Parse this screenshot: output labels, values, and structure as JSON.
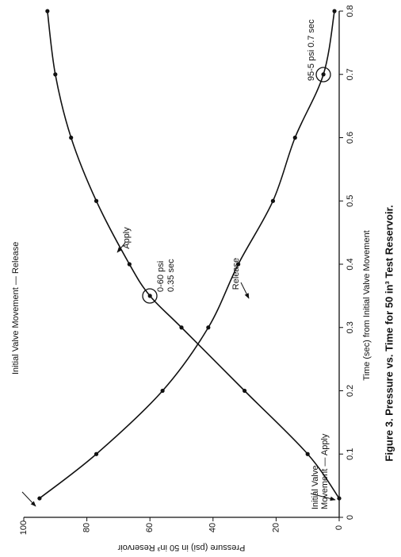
{
  "chart_data": {
    "type": "line",
    "caption": "Figure 3.  Pressure vs. Time for 50 in³ Test Reservoir.",
    "x_label": "Time (sec) from Initial Valve Movement",
    "y_label": "Pressure (psi) in 50 in³ Reservoir",
    "x": [
      0.03,
      0.1,
      0.2,
      0.3,
      0.35,
      0.4,
      0.5,
      0.6,
      0.7,
      0.8
    ],
    "series": [
      {
        "name": "Apply",
        "color": "#111111",
        "values": [
          0,
          10,
          30,
          50,
          60,
          66.5,
          77,
          85,
          90,
          92.5
        ]
      },
      {
        "name": "Release",
        "color": "#111111",
        "values": [
          95,
          77,
          56,
          41.5,
          null,
          32,
          21,
          14,
          5,
          1.5
        ]
      }
    ],
    "xlim": [
      0,
      0.8
    ],
    "xticks": [
      0,
      0.1,
      0.2,
      0.3,
      0.4,
      0.5,
      0.6,
      0.7,
      0.8
    ],
    "ylim": [
      0,
      100
    ],
    "yticks": [
      0,
      20,
      40,
      60,
      80,
      100
    ],
    "annotations": [
      "0-60 psi",
      "0.35 sec",
      "95-5 psi 0.7 sec",
      "Initial Valve Movement — Release",
      "Initial Valve",
      "Movement — Apply"
    ]
  }
}
